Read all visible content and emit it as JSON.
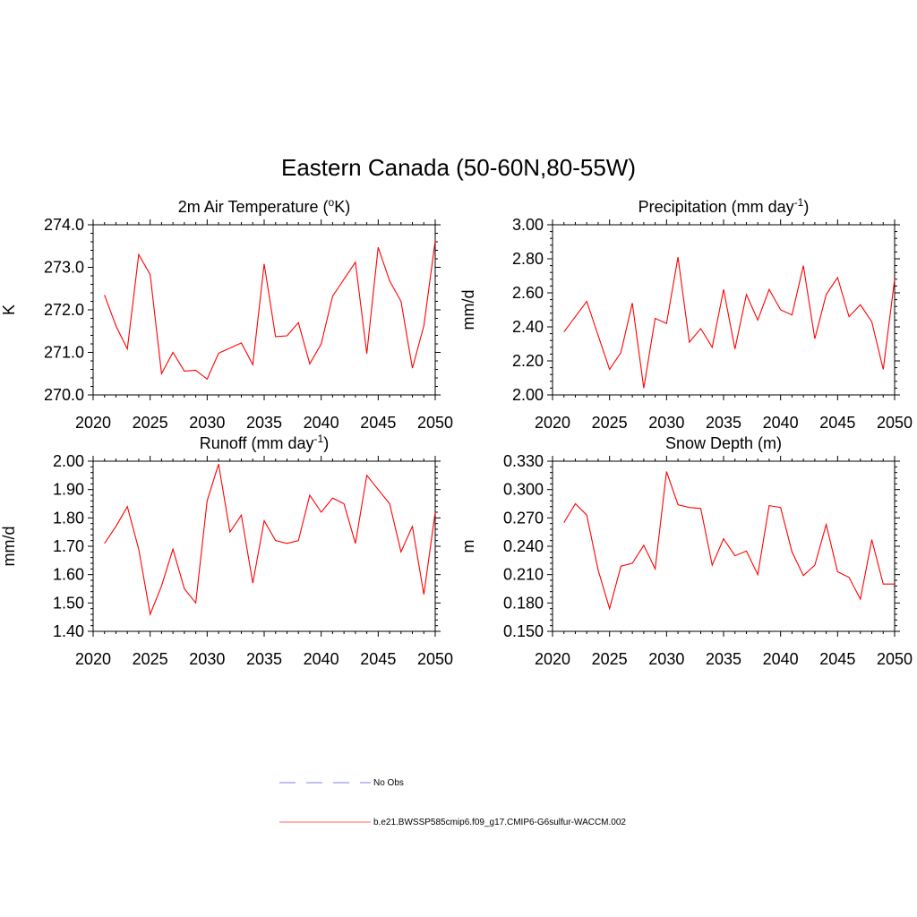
{
  "figure": {
    "title": "Eastern Canada (50-60N,80-55W)"
  },
  "legend": {
    "items": [
      {
        "label": "No Obs",
        "color": "#9999ee",
        "style": "dashed"
      },
      {
        "label": "b.e21.BWSSP585cmip6.f09_g17.CMIP6-G6sulfur-WACCM.002",
        "color": "#ff3333",
        "style": "solid"
      }
    ]
  },
  "colors": {
    "series": "#ff0000",
    "axes": "#000000"
  },
  "chart_data": [
    {
      "type": "line",
      "title_main": "2m Air Temperature (",
      "title_sup": "o",
      "title_tail": "K)",
      "ylabel": "K",
      "xlim": [
        2020,
        2050
      ],
      "ylim": [
        270.0,
        274.0
      ],
      "xticks": [
        "2020",
        "2025",
        "2030",
        "2035",
        "2040",
        "2045",
        "2050"
      ],
      "yticks": [
        "270.0",
        "271.0",
        "272.0",
        "273.0",
        "274.0"
      ],
      "x": [
        2021,
        2022,
        2023,
        2024,
        2025,
        2026,
        2027,
        2028,
        2029,
        2030,
        2031,
        2032,
        2033,
        2034,
        2035,
        2036,
        2037,
        2038,
        2039,
        2040,
        2041,
        2042,
        2043,
        2044,
        2045,
        2046,
        2047,
        2048,
        2049,
        2050
      ],
      "series": [
        {
          "values": [
            272.35,
            271.62,
            271.08,
            273.3,
            272.83,
            270.5,
            271.0,
            270.56,
            270.58,
            270.37,
            270.98,
            271.1,
            271.22,
            270.71,
            273.08,
            271.37,
            271.39,
            271.7,
            270.73,
            271.2,
            272.32,
            272.72,
            273.12,
            270.97,
            273.47,
            272.68,
            272.2,
            270.63,
            271.62,
            273.62
          ]
        }
      ]
    },
    {
      "type": "line",
      "title_main": "Precipitation (mm day",
      "title_sup": "-1",
      "title_tail": ")",
      "ylabel": "mm/d",
      "xlim": [
        2020,
        2050
      ],
      "ylim": [
        2.0,
        3.0
      ],
      "xticks": [
        "2020",
        "2025",
        "2030",
        "2035",
        "2040",
        "2045",
        "2050"
      ],
      "yticks": [
        "2.00",
        "2.20",
        "2.40",
        "2.60",
        "2.80",
        "3.00"
      ],
      "x": [
        2021,
        2022,
        2023,
        2024,
        2025,
        2026,
        2027,
        2028,
        2029,
        2030,
        2031,
        2032,
        2033,
        2034,
        2035,
        2036,
        2037,
        2038,
        2039,
        2040,
        2041,
        2042,
        2043,
        2044,
        2045,
        2046,
        2047,
        2048,
        2049,
        2050
      ],
      "series": [
        {
          "values": [
            2.37,
            2.46,
            2.55,
            2.35,
            2.15,
            2.25,
            2.54,
            2.04,
            2.45,
            2.42,
            2.81,
            2.31,
            2.39,
            2.28,
            2.62,
            2.27,
            2.59,
            2.44,
            2.62,
            2.5,
            2.47,
            2.76,
            2.33,
            2.59,
            2.69,
            2.46,
            2.53,
            2.43,
            2.15,
            2.68
          ]
        }
      ]
    },
    {
      "type": "line",
      "title_main": "Runoff (mm day",
      "title_sup": "-1",
      "title_tail": ")",
      "ylabel": "mm/d",
      "xlim": [
        2020,
        2050
      ],
      "ylim": [
        1.4,
        2.0
      ],
      "xticks": [
        "2020",
        "2025",
        "2030",
        "2035",
        "2040",
        "2045",
        "2050"
      ],
      "yticks": [
        "1.40",
        "1.50",
        "1.60",
        "1.70",
        "1.80",
        "1.90",
        "2.00"
      ],
      "x": [
        2021,
        2022,
        2023,
        2024,
        2025,
        2026,
        2027,
        2028,
        2029,
        2030,
        2031,
        2032,
        2033,
        2034,
        2035,
        2036,
        2037,
        2038,
        2039,
        2040,
        2041,
        2042,
        2043,
        2044,
        2045,
        2046,
        2047,
        2048,
        2049,
        2050
      ],
      "series": [
        {
          "values": [
            1.71,
            1.77,
            1.84,
            1.69,
            1.46,
            1.56,
            1.69,
            1.55,
            1.5,
            1.86,
            1.99,
            1.75,
            1.81,
            1.57,
            1.79,
            1.72,
            1.71,
            1.72,
            1.88,
            1.82,
            1.87,
            1.85,
            1.71,
            1.95,
            1.9,
            1.85,
            1.68,
            1.77,
            1.53,
            1.82
          ]
        }
      ]
    },
    {
      "type": "line",
      "title_main": "Snow Depth (m)",
      "title_sup": "",
      "title_tail": "",
      "ylabel": "m",
      "xlim": [
        2020,
        2050
      ],
      "ylim": [
        0.15,
        0.33
      ],
      "xticks": [
        "2020",
        "2025",
        "2030",
        "2035",
        "2040",
        "2045",
        "2050"
      ],
      "yticks": [
        "0.150",
        "0.180",
        "0.210",
        "0.240",
        "0.270",
        "0.300",
        "0.330"
      ],
      "x": [
        2021,
        2022,
        2023,
        2024,
        2025,
        2026,
        2027,
        2028,
        2029,
        2030,
        2031,
        2032,
        2033,
        2034,
        2035,
        2036,
        2037,
        2038,
        2039,
        2040,
        2041,
        2042,
        2043,
        2044,
        2045,
        2046,
        2047,
        2048,
        2049,
        2050
      ],
      "series": [
        {
          "values": [
            0.265,
            0.285,
            0.273,
            0.215,
            0.174,
            0.219,
            0.222,
            0.241,
            0.216,
            0.319,
            0.284,
            0.281,
            0.28,
            0.22,
            0.248,
            0.23,
            0.235,
            0.21,
            0.283,
            0.281,
            0.234,
            0.209,
            0.22,
            0.263,
            0.213,
            0.207,
            0.184,
            0.247,
            0.2,
            0.2
          ]
        }
      ]
    }
  ]
}
